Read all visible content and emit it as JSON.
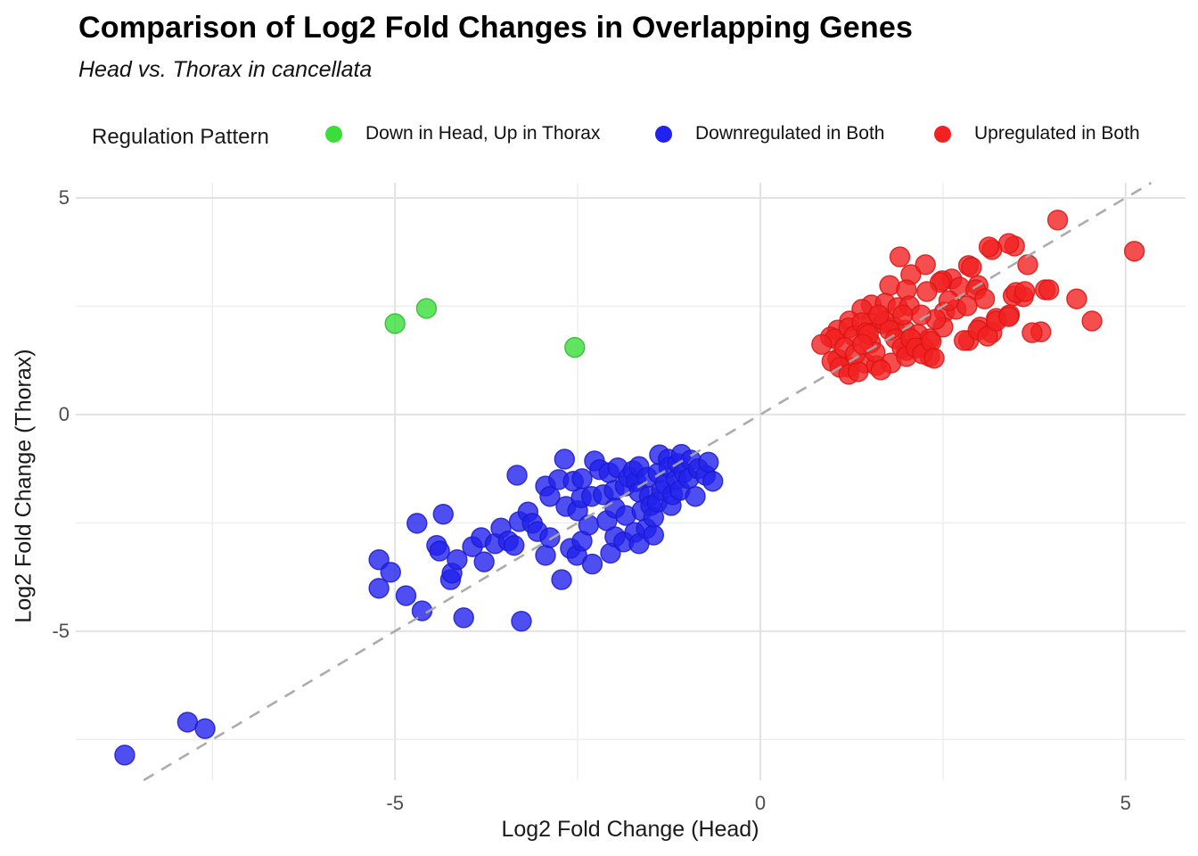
{
  "chart_data": {
    "type": "scatter",
    "title": "Comparison of Log2 Fold Changes in Overlapping Genes",
    "subtitle": "Head vs. Thorax in cancellata",
    "xlabel": "Log2 Fold Change (Head)",
    "ylabel": "Log2 Fold Change (Thorax)",
    "legend_title": "Regulation Pattern",
    "legend_position": "top",
    "grid": true,
    "xlim": [
      -9.37,
      5.82
    ],
    "ylim": [
      -8.44,
      5.35
    ],
    "x_ticks": [
      -5,
      0,
      5
    ],
    "y_ticks": [
      5,
      0,
      -5
    ],
    "x_minor_gridlines": [
      -7.5,
      -2.5,
      2.5
    ],
    "y_minor_gridlines": [
      2.5,
      -2.5,
      -7.5
    ],
    "identity_line": {
      "style": "dashed",
      "color": "#A8A8A8",
      "from": -8.44,
      "to": 5.35,
      "equation": "y = x"
    },
    "point_radius": 11,
    "series": [
      {
        "name": "Down in Head, Up in Thorax",
        "color": "#3ADD3A",
        "stroke": "#2AB82A",
        "points": [
          [
            -5.0,
            2.1
          ],
          [
            -4.57,
            2.45
          ],
          [
            -2.54,
            1.55
          ]
        ]
      },
      {
        "name": "Downregulated in Both",
        "color": "#2222EE",
        "stroke": "#1A1ACC",
        "points": [
          [
            -8.7,
            -7.86
          ],
          [
            -7.84,
            -7.1
          ],
          [
            -7.6,
            -7.25
          ],
          [
            -5.22,
            -3.35
          ],
          [
            -5.22,
            -4.01
          ],
          [
            -5.06,
            -3.64
          ],
          [
            -4.85,
            -4.18
          ],
          [
            -4.7,
            -2.51
          ],
          [
            -4.63,
            -4.53
          ],
          [
            -4.43,
            -3.02
          ],
          [
            -4.39,
            -3.15
          ],
          [
            -4.34,
            -2.3
          ],
          [
            -4.24,
            -3.81
          ],
          [
            -4.22,
            -3.66
          ],
          [
            -4.15,
            -3.35
          ],
          [
            -4.06,
            -4.69
          ],
          [
            -3.94,
            -3.05
          ],
          [
            -3.82,
            -2.84
          ],
          [
            -3.78,
            -3.4
          ],
          [
            -3.63,
            -2.98
          ],
          [
            -3.55,
            -2.62
          ],
          [
            -3.45,
            -2.92
          ],
          [
            -3.37,
            -3.02
          ],
          [
            -3.33,
            -1.4
          ],
          [
            -3.3,
            -2.47
          ],
          [
            -3.27,
            -4.77
          ],
          [
            -3.18,
            -2.25
          ],
          [
            -3.12,
            -2.51
          ],
          [
            -3.05,
            -2.7
          ],
          [
            -2.94,
            -3.25
          ],
          [
            -2.94,
            -1.65
          ],
          [
            -2.88,
            -2.84
          ],
          [
            -2.88,
            -1.89
          ],
          [
            -2.76,
            -1.5
          ],
          [
            -2.72,
            -3.81
          ],
          [
            -2.68,
            -1.03
          ],
          [
            -2.66,
            -2.12
          ],
          [
            -2.6,
            -3.09
          ],
          [
            -2.56,
            -1.54
          ],
          [
            -2.51,
            -3.25
          ],
          [
            -2.5,
            -2.22
          ],
          [
            -2.45,
            -1.92
          ],
          [
            -2.44,
            -2.92
          ],
          [
            -2.44,
            -1.48
          ],
          [
            -2.35,
            -2.55
          ],
          [
            -2.31,
            -1.89
          ],
          [
            -2.3,
            -3.45
          ],
          [
            -2.27,
            -1.07
          ],
          [
            -2.2,
            -1.27
          ],
          [
            -2.15,
            -1.85
          ],
          [
            -2.1,
            -2.45
          ],
          [
            -2.07,
            -1.34
          ],
          [
            -2.05,
            -3.2
          ],
          [
            -2.0,
            -1.75
          ],
          [
            -1.99,
            -2.82
          ],
          [
            -1.99,
            -2.16
          ],
          [
            -1.95,
            -1.23
          ],
          [
            -1.87,
            -2.94
          ],
          [
            -1.85,
            -1.65
          ],
          [
            -1.84,
            -2.33
          ],
          [
            -1.8,
            -1.45
          ],
          [
            -1.74,
            -1.3
          ],
          [
            -1.72,
            -2.72
          ],
          [
            -1.7,
            -1.55
          ],
          [
            -1.66,
            -2.98
          ],
          [
            -1.66,
            -1.79
          ],
          [
            -1.66,
            -1.2
          ],
          [
            -1.62,
            -2.22
          ],
          [
            -1.56,
            -2.63
          ],
          [
            -1.55,
            -1.45
          ],
          [
            -1.52,
            -1.89
          ],
          [
            -1.5,
            -2.1
          ],
          [
            -1.46,
            -2.78
          ],
          [
            -1.46,
            -2.37
          ],
          [
            -1.41,
            -2.02
          ],
          [
            -1.4,
            -1.35
          ],
          [
            -1.38,
            -0.93
          ],
          [
            -1.35,
            -1.75
          ],
          [
            -1.3,
            -1.6
          ],
          [
            -1.26,
            -1.03
          ],
          [
            -1.25,
            -1.22
          ],
          [
            -1.22,
            -2.1
          ],
          [
            -1.2,
            -1.85
          ],
          [
            -1.15,
            -1.5
          ],
          [
            -1.13,
            -1.13
          ],
          [
            -1.1,
            -1.75
          ],
          [
            -1.08,
            -0.92
          ],
          [
            -1.05,
            -1.34
          ],
          [
            -0.98,
            -1.48
          ],
          [
            -0.95,
            -1.05
          ],
          [
            -0.89,
            -1.89
          ],
          [
            -0.85,
            -1.25
          ],
          [
            -0.75,
            -1.4
          ],
          [
            -0.71,
            -1.1
          ],
          [
            -0.65,
            -1.54
          ]
        ]
      },
      {
        "name": "Upregulated in Both",
        "color": "#F22222",
        "stroke": "#D81414",
        "points": [
          [
            4.07,
            4.49
          ],
          [
            3.48,
            3.89
          ],
          [
            3.4,
            3.95
          ],
          [
            3.17,
            3.81
          ],
          [
            3.13,
            3.87
          ],
          [
            5.12,
            3.77
          ],
          [
            3.66,
            3.46
          ],
          [
            2.85,
            3.44
          ],
          [
            2.26,
            3.46
          ],
          [
            1.91,
            3.64
          ],
          [
            2.89,
            3.4
          ],
          [
            2.06,
            3.23
          ],
          [
            2.62,
            3.13
          ],
          [
            2.49,
            3.09
          ],
          [
            2.46,
            3.05
          ],
          [
            1.77,
            2.98
          ],
          [
            2.0,
            2.88
          ],
          [
            2.28,
            2.84
          ],
          [
            2.73,
            2.94
          ],
          [
            2.98,
            2.98
          ],
          [
            2.95,
            2.88
          ],
          [
            3.07,
            2.67
          ],
          [
            3.46,
            2.74
          ],
          [
            3.6,
            2.72
          ],
          [
            3.5,
            2.82
          ],
          [
            3.62,
            2.84
          ],
          [
            3.9,
            2.88
          ],
          [
            3.95,
            2.88
          ],
          [
            4.33,
            2.67
          ],
          [
            4.54,
            2.16
          ],
          [
            1.52,
            2.53
          ],
          [
            1.71,
            2.57
          ],
          [
            1.88,
            2.47
          ],
          [
            2.04,
            2.51
          ],
          [
            1.39,
            2.43
          ],
          [
            1.22,
            2.16
          ],
          [
            1.06,
            1.95
          ],
          [
            0.96,
            1.79
          ],
          [
            1.51,
            2.12
          ],
          [
            1.67,
            2.1
          ],
          [
            1.83,
            2.02
          ],
          [
            1.98,
            1.95
          ],
          [
            2.16,
            1.85
          ],
          [
            2.32,
            1.75
          ],
          [
            2.52,
            2.37
          ],
          [
            2.68,
            2.43
          ],
          [
            2.83,
            2.51
          ],
          [
            3.23,
            2.22
          ],
          [
            3.41,
            2.3
          ],
          [
            3.01,
            2.02
          ],
          [
            3.17,
            1.89
          ],
          [
            2.85,
            1.71
          ],
          [
            3.84,
            1.91
          ],
          [
            1.06,
            1.28
          ],
          [
            1.22,
            1.09
          ],
          [
            1.43,
            1.19
          ],
          [
            1.59,
            1.13
          ],
          [
            1.79,
            1.19
          ],
          [
            2.0,
            1.48
          ],
          [
            2.24,
            1.54
          ],
          [
            2.32,
            1.34
          ],
          [
            1.02,
            1.75
          ],
          [
            0.98,
            1.23
          ],
          [
            1.09,
            1.09
          ],
          [
            1.21,
            2.0
          ],
          [
            1.28,
            1.81
          ],
          [
            1.39,
            2.12
          ],
          [
            1.45,
            1.89
          ],
          [
            1.51,
            1.65
          ],
          [
            1.57,
            1.44
          ],
          [
            1.21,
            0.93
          ],
          [
            1.34,
            0.99
          ],
          [
            1.65,
            1.03
          ],
          [
            1.7,
            2.16
          ],
          [
            1.77,
            1.95
          ],
          [
            1.85,
            1.75
          ],
          [
            1.94,
            1.54
          ],
          [
            2.0,
            1.34
          ],
          [
            2.06,
            1.75
          ],
          [
            2.13,
            1.54
          ],
          [
            2.22,
            1.4
          ],
          [
            2.34,
            1.69
          ],
          [
            2.38,
            1.3
          ],
          [
            2.5,
            2.02
          ],
          [
            2.79,
            1.71
          ],
          [
            2.98,
            1.95
          ],
          [
            3.11,
            1.81
          ],
          [
            3.23,
            2.16
          ],
          [
            3.4,
            2.26
          ],
          [
            3.72,
            1.89
          ],
          [
            0.84,
            1.62
          ],
          [
            1.62,
            2.3
          ],
          [
            2.58,
            2.63
          ],
          [
            2.4,
            2.2
          ],
          [
            2.2,
            2.3
          ],
          [
            1.95,
            2.3
          ],
          [
            1.48,
            1.85
          ],
          [
            1.15,
            1.55
          ],
          [
            1.3,
            1.4
          ],
          [
            1.4,
            1.62
          ]
        ]
      }
    ]
  }
}
